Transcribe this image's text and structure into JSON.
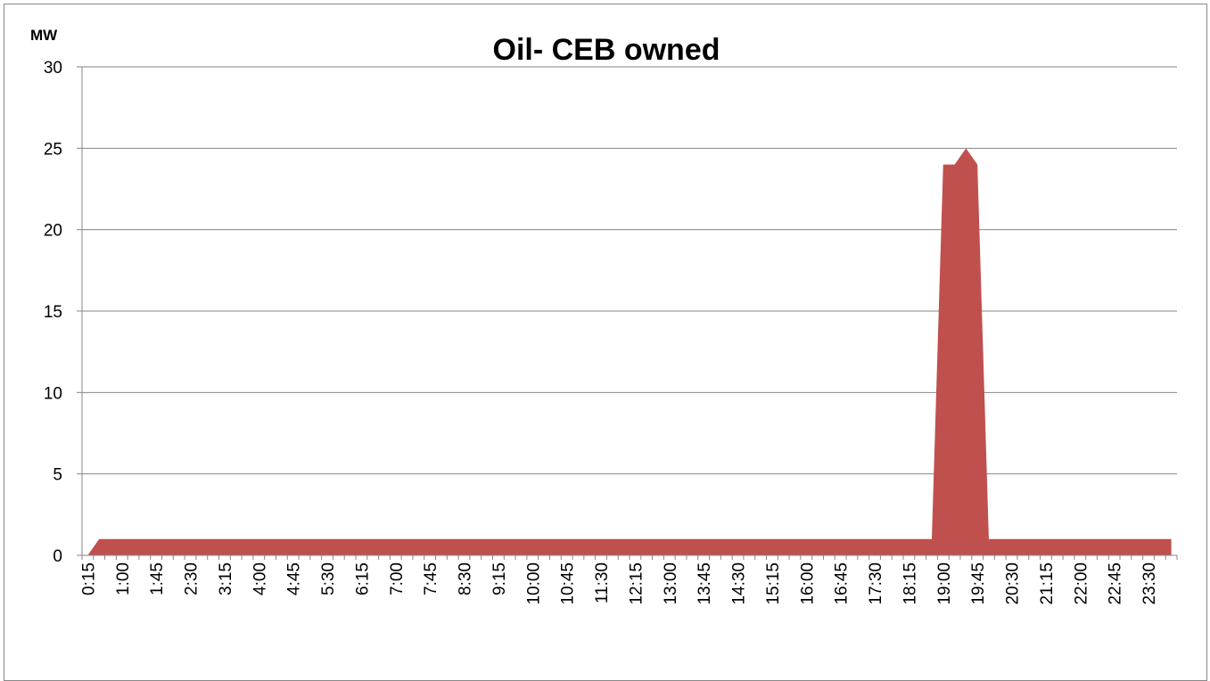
{
  "chart_data": {
    "type": "area",
    "title": "Oil- CEB owned",
    "ylabel": "MW",
    "xlabel": "",
    "ylim": [
      0,
      30
    ],
    "yticks": [
      0,
      5,
      10,
      15,
      20,
      25,
      30
    ],
    "grid": true,
    "legend": "none",
    "color": "#C0504D",
    "x_tick_labels": [
      "0:15",
      "1:00",
      "1:45",
      "2:30",
      "3:15",
      "4:00",
      "4:45",
      "5:30",
      "6:15",
      "7:00",
      "7:45",
      "8:30",
      "9:15",
      "10:00",
      "10:45",
      "11:30",
      "12:15",
      "13:00",
      "13:45",
      "14:30",
      "15:15",
      "16:00",
      "16:45",
      "17:30",
      "18:15",
      "19:00",
      "19:45",
      "20:30",
      "21:15",
      "22:00",
      "22:45",
      "23:30"
    ],
    "x": [
      "0:15",
      "0:30",
      "0:45",
      "1:00",
      "1:15",
      "1:30",
      "1:45",
      "2:00",
      "2:15",
      "2:30",
      "2:45",
      "3:00",
      "3:15",
      "3:30",
      "3:45",
      "4:00",
      "4:15",
      "4:30",
      "4:45",
      "5:00",
      "5:15",
      "5:30",
      "5:45",
      "6:00",
      "6:15",
      "6:30",
      "6:45",
      "7:00",
      "7:15",
      "7:30",
      "7:45",
      "8:00",
      "8:15",
      "8:30",
      "8:45",
      "9:00",
      "9:15",
      "9:30",
      "9:45",
      "10:00",
      "10:15",
      "10:30",
      "10:45",
      "11:00",
      "11:15",
      "11:30",
      "11:45",
      "12:00",
      "12:15",
      "12:30",
      "12:45",
      "13:00",
      "13:15",
      "13:30",
      "13:45",
      "14:00",
      "14:15",
      "14:30",
      "14:45",
      "15:00",
      "15:15",
      "15:30",
      "15:45",
      "16:00",
      "16:15",
      "16:30",
      "16:45",
      "17:00",
      "17:15",
      "17:30",
      "17:45",
      "18:00",
      "18:15",
      "18:30",
      "18:45",
      "19:00",
      "19:15",
      "19:30",
      "19:45",
      "20:00",
      "20:15",
      "20:30",
      "20:45",
      "21:00",
      "21:15",
      "21:30",
      "21:45",
      "22:00",
      "22:15",
      "22:30",
      "22:45",
      "23:00",
      "23:15",
      "23:30",
      "23:45",
      "0:00"
    ],
    "values": [
      0,
      1,
      1,
      1,
      1,
      1,
      1,
      1,
      1,
      1,
      1,
      1,
      1,
      1,
      1,
      1,
      1,
      1,
      1,
      1,
      1,
      1,
      1,
      1,
      1,
      1,
      1,
      1,
      1,
      1,
      1,
      1,
      1,
      1,
      1,
      1,
      1,
      1,
      1,
      1,
      1,
      1,
      1,
      1,
      1,
      1,
      1,
      1,
      1,
      1,
      1,
      1,
      1,
      1,
      1,
      1,
      1,
      1,
      1,
      1,
      1,
      1,
      1,
      1,
      1,
      1,
      1,
      1,
      1,
      1,
      1,
      1,
      1,
      1,
      1,
      24,
      24,
      25,
      24,
      1,
      1,
      1,
      1,
      1,
      1,
      1,
      1,
      1,
      1,
      1,
      1,
      1,
      1,
      1,
      1,
      1
    ]
  }
}
